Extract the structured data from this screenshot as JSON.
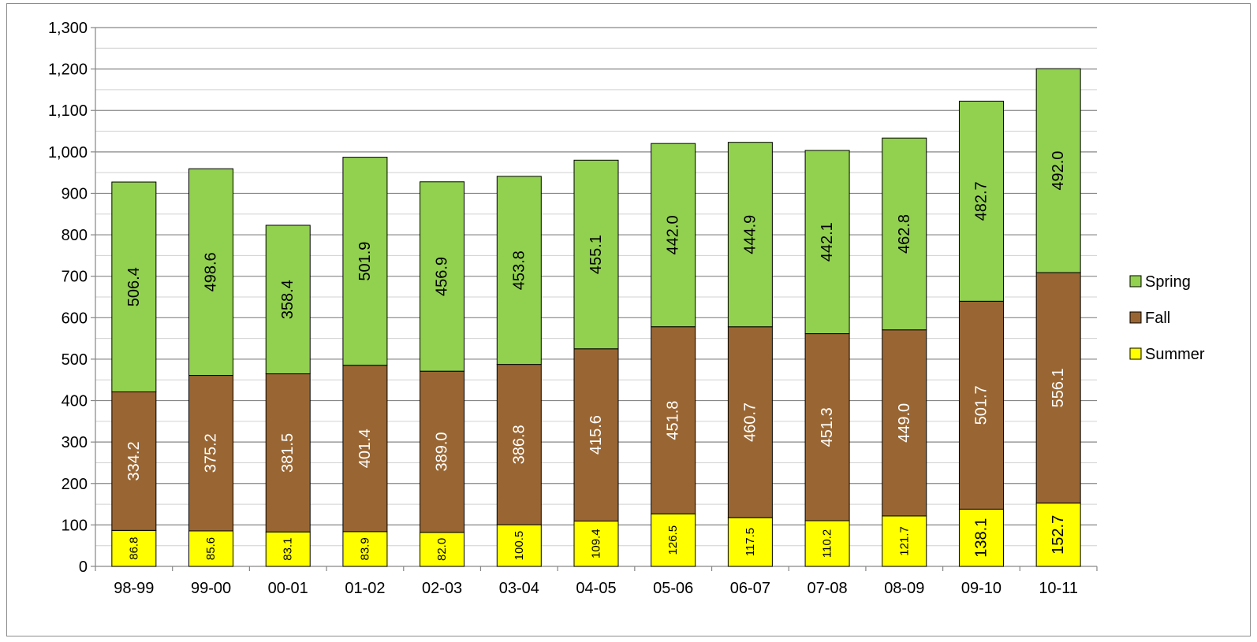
{
  "chart_data": {
    "type": "bar",
    "stacked": true,
    "categories": [
      "98-99",
      "99-00",
      "00-01",
      "01-02",
      "02-03",
      "03-04",
      "04-05",
      "05-06",
      "06-07",
      "07-08",
      "08-09",
      "09-10",
      "10-11"
    ],
    "series": [
      {
        "name": "Summer",
        "color": "#FFFF00",
        "label_color": "#000000",
        "values": [
          86.8,
          85.6,
          83.1,
          83.9,
          82.0,
          100.5,
          109.4,
          126.5,
          117.5,
          110.2,
          121.7,
          138.1,
          152.7
        ]
      },
      {
        "name": "Fall",
        "color": "#996633",
        "label_color": "#FFFFFF",
        "values": [
          334.2,
          375.2,
          381.5,
          401.4,
          389.0,
          386.8,
          415.6,
          451.8,
          460.7,
          451.3,
          449.0,
          501.7,
          556.1
        ]
      },
      {
        "name": "Spring",
        "color": "#92D050",
        "label_color": "#000000",
        "values": [
          506.4,
          498.6,
          358.4,
          501.9,
          456.9,
          453.8,
          455.1,
          442.0,
          444.9,
          442.1,
          462.8,
          482.7,
          492.0
        ]
      }
    ],
    "ylim": [
      0,
      1300
    ],
    "yticks": [
      "0",
      "100",
      "200",
      "300",
      "400",
      "500",
      "600",
      "700",
      "800",
      "900",
      "1,000",
      "1,100",
      "1,200",
      "1,300"
    ],
    "ytick_values": [
      0,
      100,
      200,
      300,
      400,
      500,
      600,
      700,
      800,
      900,
      1000,
      1100,
      1200,
      1300
    ],
    "minor_grid_step": 50,
    "grid": true,
    "legend_position": "right",
    "legend_order": [
      "Spring",
      "Fall",
      "Summer"
    ],
    "data_labels": "rotated-vertical",
    "title": "",
    "xlabel": "",
    "ylabel": ""
  }
}
